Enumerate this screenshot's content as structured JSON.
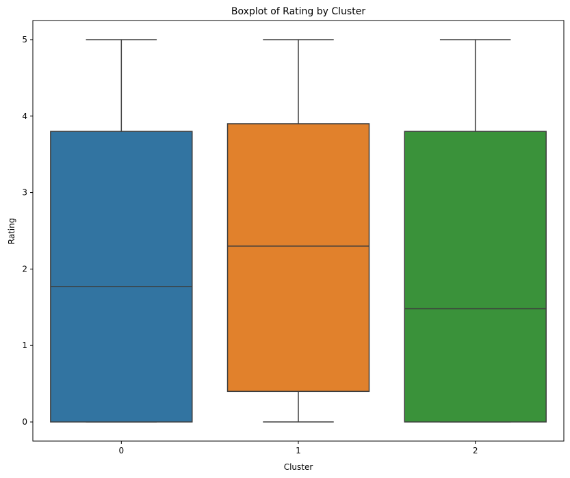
{
  "chart_data": {
    "type": "box",
    "title": "Boxplot of Rating by Cluster",
    "xlabel": "Cluster",
    "ylabel": "Rating",
    "categories": [
      "0",
      "1",
      "2"
    ],
    "ylim": [
      -0.25,
      5.25
    ],
    "yticks": [
      0,
      1,
      2,
      3,
      4,
      5
    ],
    "grid": false,
    "boxes": [
      {
        "category": "0",
        "whisker_low": 0.0,
        "q1": 0.0,
        "median": 1.77,
        "q3": 3.8,
        "whisker_high": 5.0,
        "color": "#3274a1"
      },
      {
        "category": "1",
        "whisker_low": 0.0,
        "q1": 0.4,
        "median": 2.3,
        "q3": 3.9,
        "whisker_high": 5.0,
        "color": "#e1812c"
      },
      {
        "category": "2",
        "whisker_low": 0.0,
        "q1": 0.0,
        "median": 1.48,
        "q3": 3.8,
        "whisker_high": 5.0,
        "color": "#3a923a"
      }
    ]
  }
}
